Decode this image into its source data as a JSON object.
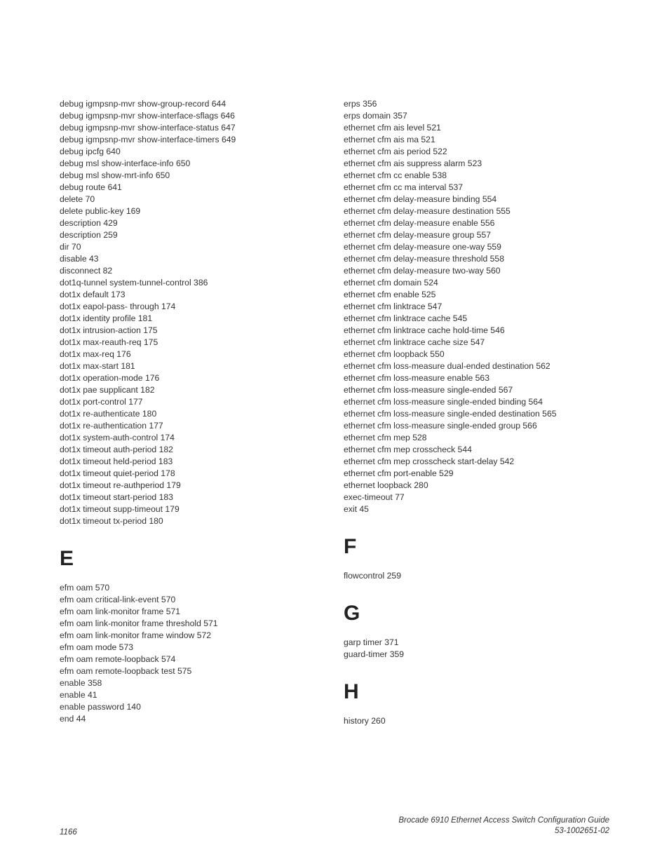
{
  "footer": {
    "pageNum": "1166",
    "title1": "Brocade 6910 Ethernet Access Switch Configuration Guide",
    "title2": "53-1002651-02"
  },
  "left": {
    "block1": [
      "debug igmpsnp-mvr show-group-record 644",
      "debug igmpsnp-mvr show-interface-sflags 646",
      "debug igmpsnp-mvr show-interface-status 647",
      "debug igmpsnp-mvr show-interface-timers 649",
      "debug ipcfg 640",
      "debug msl show-interface-info 650",
      "debug msl show-mrt-info 650",
      "debug route 641",
      "delete 70",
      "delete public-key 169",
      "description  429",
      "description 259",
      "dir 70",
      "disable 43",
      "disconnect 82",
      "dot1q-tunnel system-tunnel-control 386",
      "dot1x default 173",
      "dot1x eapol-pass- through 174",
      "dot1x identity profile 181",
      "dot1x intrusion-action 175",
      "dot1x max-reauth-req 175",
      "dot1x max-req 176",
      "dot1x max-start 181",
      "dot1x operation-mode 176",
      "dot1x pae supplicant 182",
      "dot1x port-control 177",
      "dot1x re-authenticate 180",
      "dot1x re-authentication 177",
      "dot1x system-auth-control 174",
      "dot1x timeout auth-period 182",
      "dot1x timeout held-period 183",
      "dot1x timeout quiet-period 178",
      "dot1x timeout re-authperiod 179",
      "dot1x timeout start-period 183",
      "dot1x timeout supp-timeout 179",
      "dot1x timeout tx-period 180"
    ],
    "headingE": "E",
    "blockE": [
      "efm oam 570",
      "efm oam critical-link-event 570",
      "efm oam link-monitor frame 571",
      "efm oam link-monitor frame threshold 571",
      "efm oam link-monitor frame window 572",
      "efm oam mode 573",
      "efm oam remote-loopback 574",
      "efm oam remote-loopback test  575",
      "enable 358",
      "enable 41",
      "enable password 140",
      "end 44"
    ]
  },
  "right": {
    "block1": [
      "erps 356",
      "erps domain 357",
      "ethernet cfm ais level 521",
      "ethernet cfm ais ma 521",
      "ethernet cfm ais period 522",
      "ethernet cfm ais suppress alarm 523",
      "ethernet cfm cc enable 538",
      "ethernet cfm cc ma interval 537",
      "ethernet cfm delay-measure binding 554",
      "ethernet cfm delay-measure destination 555",
      "ethernet cfm delay-measure enable 556",
      "ethernet cfm delay-measure group 557",
      "ethernet cfm delay-measure one-way 559",
      "ethernet cfm delay-measure threshold 558",
      "ethernet cfm delay-measure two-way 560",
      "ethernet cfm domain 524",
      "ethernet cfm enable 525",
      "ethernet cfm linktrace 547",
      "ethernet cfm linktrace cache 545",
      "ethernet cfm linktrace cache hold-time 546",
      "ethernet cfm linktrace cache size 547",
      "ethernet cfm loopback 550",
      "ethernet cfm loss-measure dual-ended destination 562",
      "ethernet cfm loss-measure enable 563",
      "ethernet cfm loss-measure single-ended 567",
      "ethernet cfm loss-measure single-ended binding 564",
      "ethernet cfm loss-measure single-ended destination 565",
      "ethernet cfm loss-measure single-ended group 566",
      "ethernet cfm mep 528",
      "ethernet cfm mep crosscheck 544",
      "ethernet cfm mep crosscheck start-delay 542",
      "ethernet cfm port-enable 529",
      "ethernet loopback 280",
      "exec-timeout 77",
      "exit 45"
    ],
    "headingF": "F",
    "blockF": [
      "flowcontrol 259"
    ],
    "headingG": "G",
    "blockG": [
      "garp timer 371",
      "guard-timer 359"
    ],
    "headingH": "H",
    "blockH": [
      "history 260"
    ]
  }
}
